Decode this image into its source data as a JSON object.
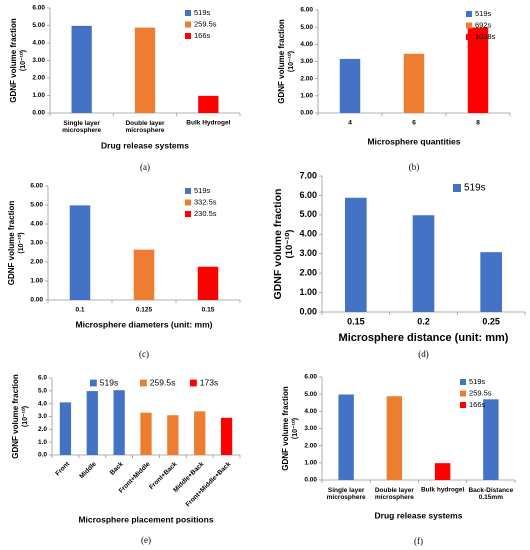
{
  "chart_data": [
    {
      "type": "bar",
      "label": "(a)",
      "xlabel": "Drug release systems",
      "ylabel": "GDNF volume fraction",
      "yunit": "(10⁻¹⁰)",
      "categories": [
        "Single layer microsphere",
        "Double layer microsphere",
        "Bulk Hydrogel"
      ],
      "series": [
        {
          "name": "519s",
          "color": "#4472c4",
          "values": [
            4.98,
            null,
            null
          ]
        },
        {
          "name": "259.5s",
          "color": "#ed7d31",
          "values": [
            null,
            4.88,
            null
          ]
        },
        {
          "name": "166s",
          "color": "#ff0000",
          "values": [
            null,
            null,
            0.98
          ]
        }
      ],
      "ylim": [
        0,
        6
      ],
      "yticks": [
        {
          "value": 0,
          "label": "0.00"
        },
        {
          "value": 1,
          "label": "1.00"
        },
        {
          "value": 2,
          "label": "2.00"
        },
        {
          "value": 3,
          "label": "3.00"
        },
        {
          "value": 4,
          "label": "4.00"
        },
        {
          "value": 5,
          "label": "5.00"
        },
        {
          "value": 6,
          "label": "6.00"
        }
      ],
      "legend": "upper right"
    },
    {
      "type": "bar",
      "label": "(b)",
      "xlabel": "Microsphere quantities",
      "ylabel": "GDNF volume fraction",
      "yunit": "(10⁻¹⁰)",
      "categories": [
        "4",
        "6",
        "8"
      ],
      "series": [
        {
          "name": "519s",
          "color": "#4472c4",
          "values": [
            3.15,
            null,
            null
          ]
        },
        {
          "name": "692s",
          "color": "#ed7d31",
          "values": [
            null,
            3.45,
            null
          ]
        },
        {
          "name": "1038s",
          "color": "#ff0000",
          "values": [
            null,
            null,
            4.98
          ]
        }
      ],
      "ylim": [
        0,
        6
      ],
      "yticks": [
        {
          "value": 0,
          "label": "0.00"
        },
        {
          "value": 1,
          "label": "1.00"
        },
        {
          "value": 2,
          "label": "2.00"
        },
        {
          "value": 3,
          "label": "3.00"
        },
        {
          "value": 4,
          "label": "4.00"
        },
        {
          "value": 5,
          "label": "5.00"
        },
        {
          "value": 6,
          "label": "6.00"
        }
      ],
      "legend": "right"
    },
    {
      "type": "bar",
      "label": "(c)",
      "xlabel": "Microsphere diameters (unit: mm)",
      "ylabel": "GDNF volume fraction",
      "yunit": "(10⁻¹⁰)",
      "categories": [
        "0.1",
        "0.125",
        "0.15"
      ],
      "series": [
        {
          "name": "519s",
          "color": "#4472c4",
          "values": [
            4.98,
            null,
            null
          ]
        },
        {
          "name": "332.5s",
          "color": "#ed7d31",
          "values": [
            null,
            2.65,
            null
          ]
        },
        {
          "name": "230.5s",
          "color": "#ff0000",
          "values": [
            null,
            null,
            1.75
          ]
        }
      ],
      "ylim": [
        0,
        6
      ],
      "yticks": [
        {
          "value": 0,
          "label": "0.00"
        },
        {
          "value": 1,
          "label": "1.00"
        },
        {
          "value": 2,
          "label": "2.00"
        },
        {
          "value": 3,
          "label": "3.00"
        },
        {
          "value": 4,
          "label": "4.00"
        },
        {
          "value": 5,
          "label": "5.00"
        },
        {
          "value": 6,
          "label": "6.00"
        }
      ],
      "legend": "upper right"
    },
    {
      "type": "bar",
      "label": "(d)",
      "xlabel": "Microsphere distance (unit: mm)",
      "ylabel": "GDNF volume fraction",
      "yunit": "(10⁻¹⁰)",
      "categories": [
        "0.15",
        "0.2",
        "0.25"
      ],
      "series": [
        {
          "name": "519s",
          "color": "#4472c4",
          "values": [
            5.88,
            4.98,
            3.08
          ]
        }
      ],
      "ylim": [
        0,
        7
      ],
      "yticks": [
        {
          "value": 0,
          "label": "0.00"
        },
        {
          "value": 1,
          "label": "1.00"
        },
        {
          "value": 2,
          "label": "2.00"
        },
        {
          "value": 3,
          "label": "3.00"
        },
        {
          "value": 4,
          "label": "4.00"
        },
        {
          "value": 5,
          "label": "5.00"
        },
        {
          "value": 6,
          "label": "6.00"
        },
        {
          "value": 7,
          "label": "7.00"
        }
      ],
      "legend": "upper right"
    },
    {
      "type": "bar",
      "label": "(e)",
      "xlabel": "Microsphere placement positions",
      "ylabel": "GDNF volume fraction",
      "yunit": "(10⁻¹⁰)",
      "categories": [
        "Front",
        "Middle",
        "Back",
        "Front+Middle",
        "Front+Back",
        "Middle+Back",
        "Front+Middle+Back"
      ],
      "series": [
        {
          "name": "519s",
          "color": "#4472c4",
          "values": [
            4.1,
            4.98,
            5.05,
            null,
            null,
            null,
            null
          ]
        },
        {
          "name": "259.5s",
          "color": "#ed7d31",
          "values": [
            null,
            null,
            null,
            3.3,
            3.1,
            3.4,
            null
          ]
        },
        {
          "name": "173s",
          "color": "#ff0000",
          "values": [
            null,
            null,
            null,
            null,
            null,
            null,
            2.9
          ]
        }
      ],
      "ylim": [
        0,
        6
      ],
      "yticks": [
        {
          "value": 0,
          "label": "0.0"
        },
        {
          "value": 1,
          "label": "1.0"
        },
        {
          "value": 2,
          "label": "2.0"
        },
        {
          "value": 3,
          "label": "3.0"
        },
        {
          "value": 4,
          "label": "4.0"
        },
        {
          "value": 5,
          "label": "5.0"
        },
        {
          "value": 6,
          "label": "6.0"
        }
      ],
      "legend": "top"
    },
    {
      "type": "bar",
      "label": "(f)",
      "xlabel": "Drug release systems",
      "ylabel": "GDNF volume fraction",
      "yunit": "(10⁻¹⁰)",
      "categories": [
        "Single layer microsphere",
        "Double layer microsphere",
        "Bulk hydrogel",
        "Back-Distance 0.15mm"
      ],
      "series": [
        {
          "name": "519s",
          "color": "#4472c4",
          "values": [
            4.98,
            null,
            null,
            4.7
          ]
        },
        {
          "name": "259.5s",
          "color": "#ed7d31",
          "values": [
            null,
            4.88,
            null,
            null
          ]
        },
        {
          "name": "166s",
          "color": "#ff0000",
          "values": [
            null,
            null,
            0.98,
            null
          ]
        }
      ],
      "ylim": [
        0,
        6
      ],
      "yticks": [
        {
          "value": 0,
          "label": "0.00"
        },
        {
          "value": 1,
          "label": "1.00"
        },
        {
          "value": 2,
          "label": "2.00"
        },
        {
          "value": 3,
          "label": "3.00"
        },
        {
          "value": 4,
          "label": "4.00"
        },
        {
          "value": 5,
          "label": "5.00"
        },
        {
          "value": 6,
          "label": "6.00"
        }
      ],
      "legend": "upper right"
    }
  ]
}
